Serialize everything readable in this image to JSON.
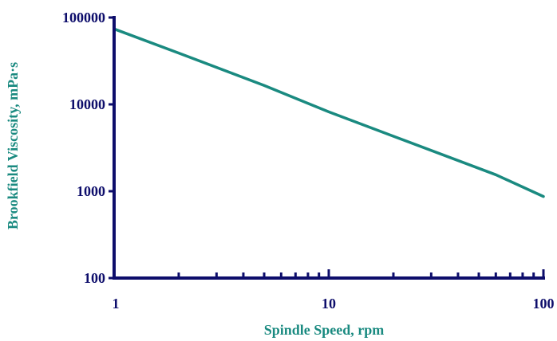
{
  "chart_data": {
    "type": "line",
    "xlabel": "Spindle Speed, rpm",
    "ylabel": "Brookfield Viscosity, mPa·s",
    "x_scale": "log",
    "y_scale": "log",
    "xlim": [
      1,
      100
    ],
    "ylim": [
      100,
      100000
    ],
    "x_tick_labels": [
      "1",
      "10",
      "100"
    ],
    "y_tick_labels": [
      "100",
      "1000",
      "10000",
      "100000"
    ],
    "x_tick_labels_values": [
      1,
      10,
      100
    ],
    "y_tick_labels_values": [
      100,
      1000,
      10000,
      100000
    ],
    "x_minor_ticks": [
      2,
      3,
      4,
      5,
      6,
      7,
      8,
      9,
      20,
      30,
      40,
      50,
      60,
      70,
      80,
      90
    ],
    "grid": false,
    "series": [
      {
        "color": "#1a8a80",
        "points": [
          {
            "x": 1,
            "y": 74000
          },
          {
            "x": 2,
            "y": 39000
          },
          {
            "x": 5,
            "y": 16500
          },
          {
            "x": 10,
            "y": 8200
          },
          {
            "x": 20,
            "y": 4300
          },
          {
            "x": 60,
            "y": 1550
          },
          {
            "x": 100,
            "y": 870
          }
        ]
      }
    ]
  },
  "colors": {
    "axis": "#0d0d6b",
    "axis_title": "#1a8a80",
    "series": "#1a8a80"
  }
}
